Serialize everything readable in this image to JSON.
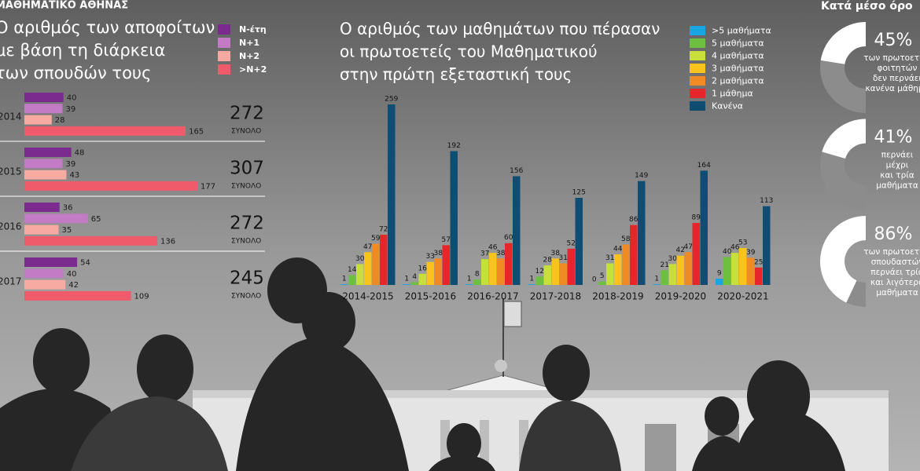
{
  "header": "ΜΑΘΗΜΑΤΙΚΟ ΑΘΗΝΑΣ",
  "chart_data": [
    {
      "type": "bar",
      "orientation": "horizontal",
      "title": [
        "Ο αριθμός των αποφοίτων",
        "με βάση τη διάρκεια",
        "των σπουδών τους"
      ],
      "categories": [
        "2014",
        "2015",
        "2016",
        "2017"
      ],
      "series": [
        {
          "name": "N-έτη",
          "color": "#7b2a8e",
          "values": [
            40,
            48,
            36,
            54
          ]
        },
        {
          "name": "N+1",
          "color": "#c27bc4",
          "values": [
            39,
            39,
            65,
            40
          ]
        },
        {
          "name": "N+2",
          "color": "#f6aaa2",
          "values": [
            28,
            43,
            35,
            42
          ]
        },
        {
          "name": ">N+2",
          "color": "#f05b6b",
          "values": [
            165,
            177,
            136,
            109
          ]
        }
      ],
      "totals": [
        272,
        307,
        272,
        245
      ],
      "total_label": "ΣΥΝΟΛΟ"
    },
    {
      "type": "bar",
      "orientation": "vertical",
      "title": [
        "Ο αριθμός των μαθημάτων που πέρασαν",
        "οι πρωτοετείς του Μαθηματικού",
        "στην πρώτη εξεταστική τους"
      ],
      "categories": [
        "2014-2015",
        "2015-2016",
        "2016-2017",
        "2017-2018",
        "2018-2019",
        "2019-2020",
        "2020-2021"
      ],
      "series": [
        {
          "name": ">5 μαθήματα",
          "color": "#19a4e2",
          "values": [
            1,
            1,
            1,
            1,
            0,
            1,
            9
          ]
        },
        {
          "name": "5 μαθήματα",
          "color": "#6dbf3f",
          "values": [
            14,
            4,
            8,
            12,
            5,
            21,
            40
          ]
        },
        {
          "name": "4 μαθήματα",
          "color": "#c8de3a",
          "values": [
            30,
            16,
            37,
            28,
            31,
            30,
            46
          ]
        },
        {
          "name": "3 μαθήματα",
          "color": "#f8c31b",
          "values": [
            47,
            33,
            46,
            38,
            44,
            42,
            53
          ]
        },
        {
          "name": "2 μαθήματα",
          "color": "#f08a25",
          "values": [
            59,
            38,
            38,
            31,
            58,
            47,
            39
          ]
        },
        {
          "name": "1 μάθημα",
          "color": "#e6262b",
          "values": [
            72,
            57,
            60,
            52,
            86,
            89,
            25
          ]
        },
        {
          "name": "Κανένα",
          "color": "#0f4e72",
          "values": [
            259,
            192,
            156,
            125,
            149,
            164,
            113
          ]
        }
      ]
    },
    {
      "type": "donut",
      "title": "Κατά μέσο όρο",
      "values": [
        45,
        41,
        86
      ],
      "value_labels": [
        "45%",
        "41%",
        "86%"
      ],
      "descriptions": [
        [
          "των πρωτοετών",
          "φοιτητών",
          "δεν περνάει",
          "κανένα μάθημα"
        ],
        [
          "περνάει",
          "μέχρι",
          "και τρία",
          "μαθήματα"
        ],
        [
          "των πρωτοετών",
          "σπουδαστών",
          "περνάει τρία",
          "και λιγότερα",
          "μαθήματα"
        ]
      ],
      "color": "#ffffff",
      "rest_color": "#8c8c8c"
    }
  ]
}
